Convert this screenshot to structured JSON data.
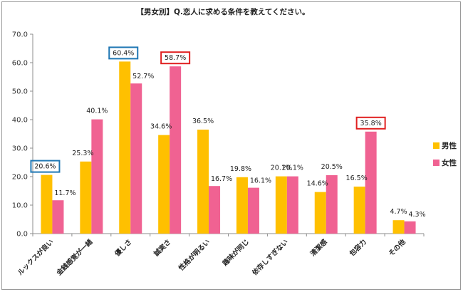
{
  "chart_data": {
    "type": "bar",
    "title": "【男女別】Q.恋人に求める条件を教えてください。",
    "categories": [
      "ルックスが良い",
      "金銭感覚が一緒",
      "優しさ",
      "誠実さ",
      "性格が明るい",
      "趣味が同じ",
      "依存しすぎない",
      "清潔感",
      "包容力",
      "その他"
    ],
    "series": [
      {
        "name": "男性",
        "color": "#FFC000",
        "values": [
          20.6,
          25.3,
          60.4,
          34.6,
          36.5,
          19.8,
          20.1,
          14.6,
          16.5,
          4.7
        ],
        "labels": [
          "20.6%",
          "25.3%",
          "60.4%",
          "34.6%",
          "36.5%",
          "19.8%",
          "20.1%",
          "14.6%",
          "16.5%",
          "4.7%"
        ]
      },
      {
        "name": "女性",
        "color": "#F06292",
        "values": [
          11.7,
          40.1,
          52.7,
          58.7,
          16.7,
          16.1,
          20.1,
          20.5,
          35.8,
          4.3
        ],
        "labels": [
          "11.7%",
          "40.1%",
          "52.7%",
          "58.7%",
          "16.7%",
          "16.1%",
          "20.1%",
          "20.5%",
          "35.8%",
          "4.3%"
        ]
      }
    ],
    "highlights": [
      {
        "series": 0,
        "index": 0,
        "color": "#1F77B4"
      },
      {
        "series": 0,
        "index": 2,
        "color": "#1F77B4"
      },
      {
        "series": 1,
        "index": 3,
        "color": "#E02020"
      },
      {
        "series": 1,
        "index": 8,
        "color": "#E02020"
      }
    ],
    "ylim": [
      0,
      70
    ],
    "yticks": [
      "0.0",
      "10.0",
      "20.0",
      "30.0",
      "40.0",
      "50.0",
      "60.0",
      "70.0"
    ],
    "grid": false,
    "legend": "right"
  }
}
